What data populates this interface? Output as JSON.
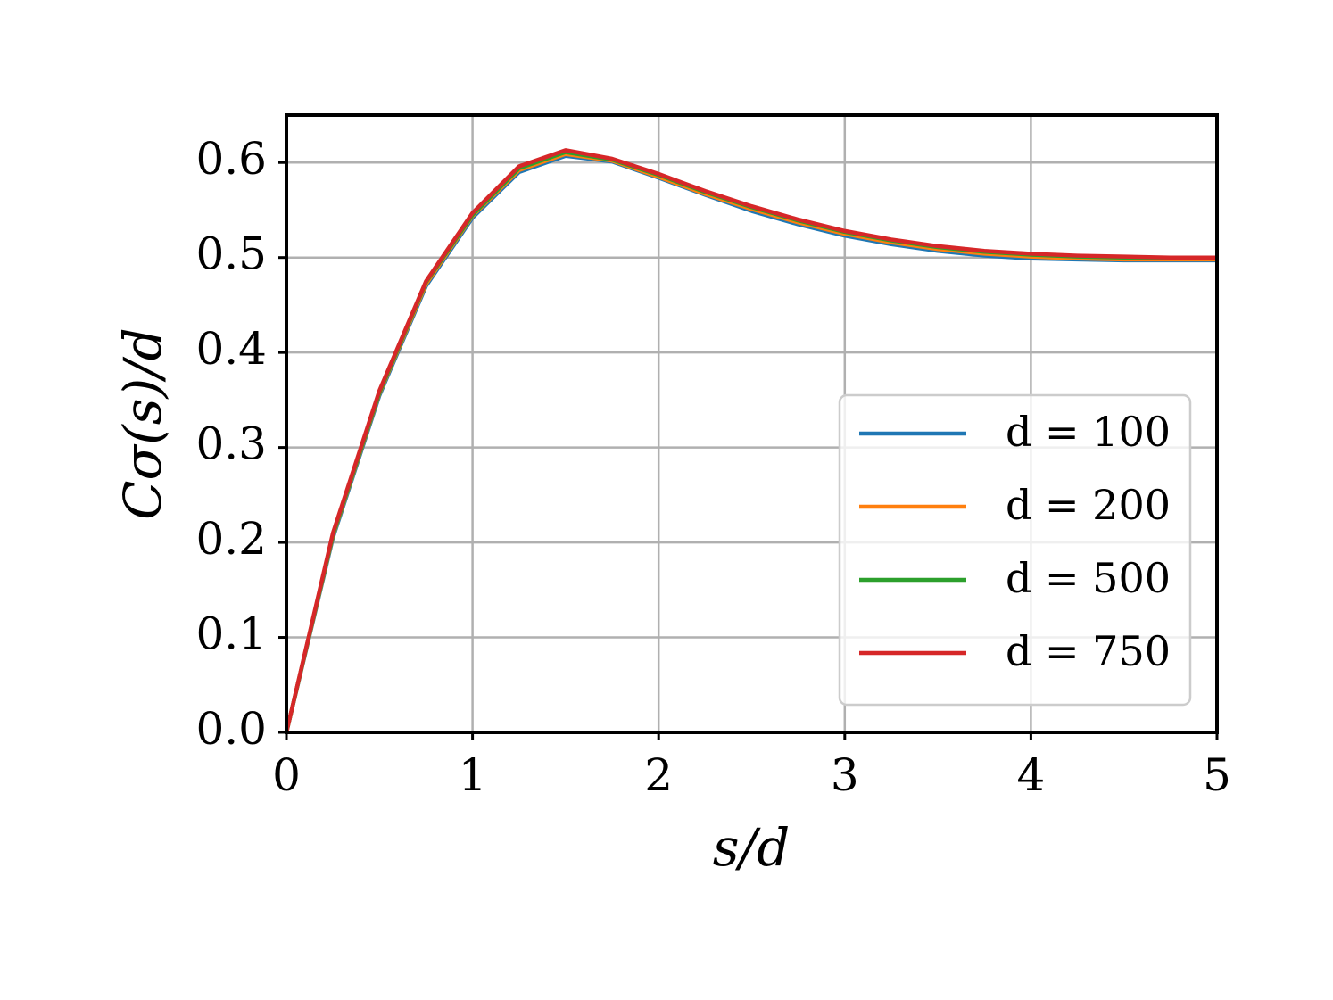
{
  "chart_data": {
    "type": "line",
    "x_label": "s/d",
    "y_label": "Cσ(s)/d",
    "x": [
      0,
      0.25,
      0.5,
      0.75,
      1,
      1.25,
      1.5,
      1.75,
      2,
      2.25,
      2.5,
      2.75,
      3,
      3.25,
      3.5,
      3.75,
      4,
      4.25,
      4.5,
      4.75,
      5
    ],
    "series": [
      {
        "name": "d = 100",
        "color": "#1f77b4",
        "values": [
          0,
          0.205,
          0.355,
          0.47,
          0.542,
          0.59,
          0.607,
          0.601,
          0.584,
          0.566,
          0.549,
          0.535,
          0.523,
          0.514,
          0.507,
          0.502,
          0.499,
          0.498,
          0.497,
          0.497,
          0.497
        ]
      },
      {
        "name": "d = 200",
        "color": "#ff7f0e",
        "values": [
          0,
          0.207,
          0.357,
          0.472,
          0.544,
          0.592,
          0.609,
          0.602,
          0.585,
          0.567,
          0.551,
          0.537,
          0.525,
          0.516,
          0.509,
          0.504,
          0.501,
          0.499,
          0.498,
          0.498,
          0.498
        ]
      },
      {
        "name": "d = 500",
        "color": "#2ca02c",
        "values": [
          0,
          0.208,
          0.358,
          0.474,
          0.545,
          0.594,
          0.611,
          0.603,
          0.587,
          0.569,
          0.553,
          0.539,
          0.527,
          0.518,
          0.511,
          0.506,
          0.503,
          0.501,
          0.5,
          0.499,
          0.499
        ]
      },
      {
        "name": "d = 750",
        "color": "#d62728",
        "values": [
          0,
          0.21,
          0.36,
          0.475,
          0.547,
          0.596,
          0.613,
          0.604,
          0.588,
          0.57,
          0.554,
          0.54,
          0.528,
          0.519,
          0.512,
          0.507,
          0.504,
          0.502,
          0.501,
          0.5,
          0.5
        ]
      }
    ],
    "xlim": [
      0,
      5
    ],
    "ylim": [
      0,
      0.65
    ],
    "xticks": [
      0,
      1,
      2,
      3,
      4,
      5
    ],
    "yticks": [
      {
        "value": 0,
        "label": "0.0"
      },
      0.1,
      0.2,
      0.3,
      0.4,
      0.5,
      0.6
    ],
    "grid": true,
    "legend": "lower right"
  }
}
